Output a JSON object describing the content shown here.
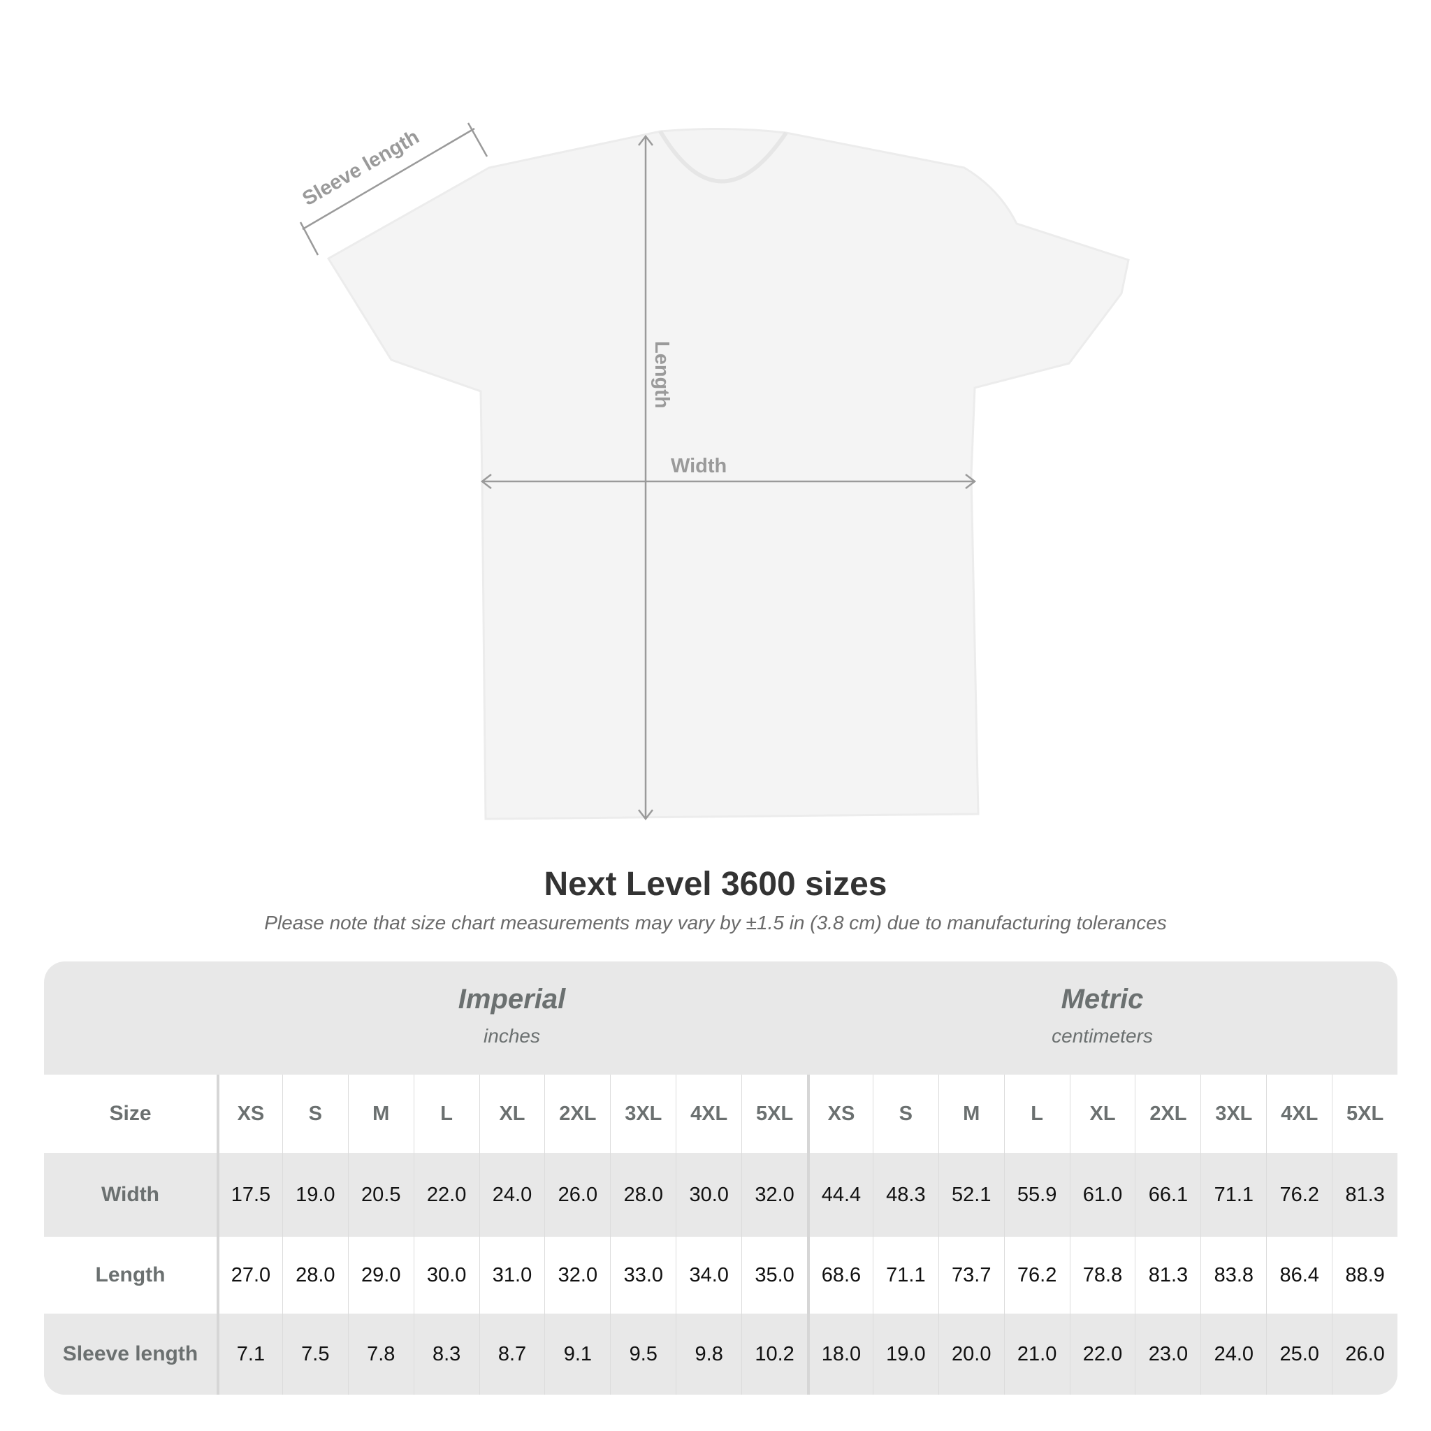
{
  "diagram": {
    "labels": {
      "sleeve": "Sleeve length",
      "length": "Length",
      "width": "Width"
    },
    "colors": {
      "shirt": "#f4f4f4",
      "annotation": "#9a9a9a"
    }
  },
  "title": "Next Level 3600 sizes",
  "note": "Please note that size chart measurements may vary by ±1.5 in (3.8 cm) due to manufacturing tolerances",
  "table": {
    "imperial": {
      "label": "Imperial",
      "unit": "inches"
    },
    "metric": {
      "label": "Metric",
      "unit": "centimeters"
    },
    "size_label": "Size",
    "sizes": [
      "XS",
      "S",
      "M",
      "L",
      "XL",
      "2XL",
      "3XL",
      "4XL",
      "5XL"
    ],
    "rows": [
      {
        "label": "Width",
        "imperial": [
          "17.5",
          "19.0",
          "20.5",
          "22.0",
          "24.0",
          "26.0",
          "28.0",
          "30.0",
          "32.0"
        ],
        "metric": [
          "44.4",
          "48.3",
          "52.1",
          "55.9",
          "61.0",
          "66.1",
          "71.1",
          "76.2",
          "81.3"
        ]
      },
      {
        "label": "Length",
        "imperial": [
          "27.0",
          "28.0",
          "29.0",
          "30.0",
          "31.0",
          "32.0",
          "33.0",
          "34.0",
          "35.0"
        ],
        "metric": [
          "68.6",
          "71.1",
          "73.7",
          "76.2",
          "78.8",
          "81.3",
          "83.8",
          "86.4",
          "88.9"
        ]
      },
      {
        "label": "Sleeve length",
        "imperial": [
          "7.1",
          "7.5",
          "7.8",
          "8.3",
          "8.7",
          "9.1",
          "9.5",
          "9.8",
          "10.2"
        ],
        "metric": [
          "18.0",
          "19.0",
          "20.0",
          "21.0",
          "22.0",
          "23.0",
          "24.0",
          "25.0",
          "26.0"
        ]
      }
    ]
  }
}
